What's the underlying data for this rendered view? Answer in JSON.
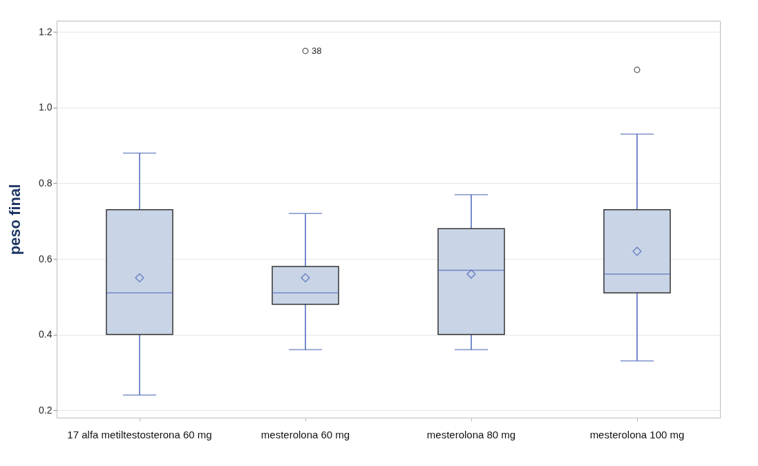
{
  "chart_data": {
    "type": "box",
    "ylabel": "peso    final",
    "categories": [
      "17 alfa metiltestosterona 60 mg",
      "mesterolona 60 mg",
      "mesterolona 80 mg",
      "mesterolona 100 mg"
    ],
    "boxes": [
      {
        "low": 0.24,
        "q1": 0.4,
        "median": 0.51,
        "q3": 0.73,
        "high": 0.88,
        "mean": 0.55
      },
      {
        "low": 0.36,
        "q1": 0.48,
        "median": 0.51,
        "q3": 0.58,
        "high": 0.72,
        "mean": 0.55,
        "outliers": [
          1.15
        ]
      },
      {
        "low": 0.36,
        "q1": 0.4,
        "median": 0.57,
        "q3": 0.68,
        "high": 0.77,
        "mean": 0.56
      },
      {
        "low": 0.33,
        "q1": 0.51,
        "median": 0.56,
        "q3": 0.73,
        "high": 0.93,
        "mean": 0.62,
        "outliers": [
          1.1
        ]
      }
    ],
    "color": "#c9d5e6",
    "ylim": [
      0.18,
      1.23
    ],
    "yticks": [
      0.2,
      0.4,
      0.6,
      0.8,
      {
        "value": 1,
        "label": "1.0"
      },
      {
        "value": 1.2,
        "label": "1.2"
      }
    ],
    "grid": "y",
    "marker": "diamond",
    "annotations": [
      "38"
    ]
  }
}
